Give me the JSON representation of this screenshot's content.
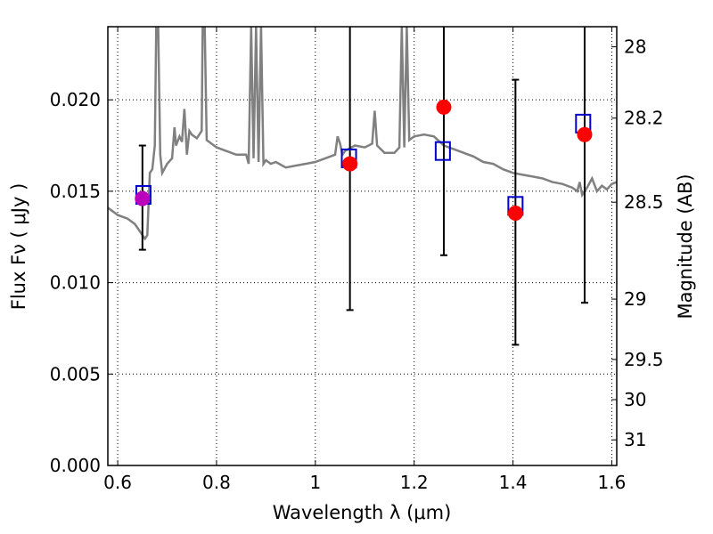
{
  "chart_data": {
    "type": "scatter",
    "xlabel": "Wavelength  λ (μm)",
    "ylabel": "Flux  Fν  ( μJy )",
    "y2label": "Magnitude (AB)",
    "xlim": [
      0.58,
      1.61
    ],
    "ylim": [
      0.0,
      0.024
    ],
    "grid": true,
    "x_ticks": [
      0.6,
      0.8,
      1.0,
      1.2,
      1.4,
      1.6
    ],
    "x_tick_labels": [
      "0.6",
      "0.8",
      "1",
      "1.2",
      "1.4",
      "1.6"
    ],
    "y_ticks": [
      0.0,
      0.005,
      0.01,
      0.015,
      0.02
    ],
    "y_tick_labels": [
      "0.000",
      "0.005",
      "0.010",
      "0.015",
      "0.020"
    ],
    "y2_ticks": [
      {
        "label": "28",
        "flux": 0.0229
      },
      {
        "label": "28.2",
        "flux": 0.019
      },
      {
        "label": "28.5",
        "flux": 0.0144
      },
      {
        "label": "29",
        "flux": 0.0091
      },
      {
        "label": "29.5",
        "flux": 0.0058
      },
      {
        "label": "30",
        "flux": 0.0036
      },
      {
        "label": "31",
        "flux": 0.0014
      }
    ],
    "colors": {
      "model": "#808080",
      "model_photometry": "#0000cc",
      "observed": "#ff0000",
      "observed_overlap": "#bb00bb",
      "errorbar": "#000000"
    },
    "series": [
      {
        "kind": "observed",
        "points": [
          {
            "x": 0.65,
            "y": 0.0146,
            "yerr_low": 0.0118,
            "yerr_high": 0.0175
          },
          {
            "x": 1.07,
            "y": 0.0165,
            "yerr_low": 0.0085,
            "yerr_high": 0.024
          },
          {
            "x": 1.26,
            "y": 0.0196,
            "yerr_low": 0.0115,
            "yerr_high": 0.024
          },
          {
            "x": 1.405,
            "y": 0.0138,
            "yerr_low": 0.0066,
            "yerr_high": 0.0211
          },
          {
            "x": 1.545,
            "y": 0.0181,
            "yerr_low": 0.0089,
            "yerr_high": 0.024
          }
        ]
      },
      {
        "kind": "model_photometry",
        "points": [
          {
            "x": 0.652,
            "y": 0.0148
          },
          {
            "x": 1.068,
            "y": 0.0168
          },
          {
            "x": 1.258,
            "y": 0.0172
          },
          {
            "x": 1.405,
            "y": 0.0142
          },
          {
            "x": 1.542,
            "y": 0.0187
          }
        ]
      },
      {
        "kind": "model_spectrum",
        "points": [
          [
            0.58,
            0.0141
          ],
          [
            0.6,
            0.0137
          ],
          [
            0.62,
            0.0135
          ],
          [
            0.635,
            0.0132
          ],
          [
            0.645,
            0.0128
          ],
          [
            0.655,
            0.0124
          ],
          [
            0.66,
            0.0126
          ],
          [
            0.665,
            0.016
          ],
          [
            0.67,
            0.0162
          ],
          [
            0.675,
            0.0175
          ],
          [
            0.678,
            0.024
          ],
          [
            0.682,
            0.024
          ],
          [
            0.686,
            0.017
          ],
          [
            0.69,
            0.016
          ],
          [
            0.7,
            0.0165
          ],
          [
            0.71,
            0.0168
          ],
          [
            0.715,
            0.0185
          ],
          [
            0.718,
            0.0175
          ],
          [
            0.725,
            0.018
          ],
          [
            0.73,
            0.0177
          ],
          [
            0.735,
            0.0195
          ],
          [
            0.74,
            0.017
          ],
          [
            0.745,
            0.0183
          ],
          [
            0.75,
            0.0181
          ],
          [
            0.76,
            0.0179
          ],
          [
            0.77,
            0.0183
          ],
          [
            0.772,
            0.024
          ],
          [
            0.776,
            0.024
          ],
          [
            0.78,
            0.0178
          ],
          [
            0.79,
            0.0176
          ],
          [
            0.8,
            0.0174
          ],
          [
            0.82,
            0.0172
          ],
          [
            0.84,
            0.017
          ],
          [
            0.86,
            0.017
          ],
          [
            0.865,
            0.0165
          ],
          [
            0.87,
            0.024
          ],
          [
            0.875,
            0.0168
          ],
          [
            0.88,
            0.024
          ],
          [
            0.885,
            0.0166
          ],
          [
            0.89,
            0.024
          ],
          [
            0.895,
            0.0165
          ],
          [
            0.9,
            0.0167
          ],
          [
            0.91,
            0.0165
          ],
          [
            0.92,
            0.0166
          ],
          [
            0.94,
            0.0163
          ],
          [
            0.96,
            0.0164
          ],
          [
            0.98,
            0.0165
          ],
          [
            1.0,
            0.0166
          ],
          [
            1.02,
            0.0168
          ],
          [
            1.04,
            0.017
          ],
          [
            1.045,
            0.018
          ],
          [
            1.05,
            0.0176
          ],
          [
            1.055,
            0.017
          ],
          [
            1.06,
            0.0172
          ],
          [
            1.08,
            0.0175
          ],
          [
            1.1,
            0.0174
          ],
          [
            1.115,
            0.0176
          ],
          [
            1.12,
            0.0194
          ],
          [
            1.125,
            0.0175
          ],
          [
            1.14,
            0.0171
          ],
          [
            1.16,
            0.0171
          ],
          [
            1.17,
            0.0174
          ],
          [
            1.175,
            0.024
          ],
          [
            1.18,
            0.0174
          ],
          [
            1.185,
            0.024
          ],
          [
            1.19,
            0.0178
          ],
          [
            1.2,
            0.018
          ],
          [
            1.22,
            0.0181
          ],
          [
            1.24,
            0.018
          ],
          [
            1.26,
            0.0175
          ],
          [
            1.28,
            0.0173
          ],
          [
            1.3,
            0.0171
          ],
          [
            1.32,
            0.0169
          ],
          [
            1.34,
            0.0166
          ],
          [
            1.36,
            0.0165
          ],
          [
            1.38,
            0.0162
          ],
          [
            1.4,
            0.016
          ],
          [
            1.42,
            0.0159
          ],
          [
            1.44,
            0.0158
          ],
          [
            1.46,
            0.0157
          ],
          [
            1.48,
            0.0155
          ],
          [
            1.5,
            0.0154
          ],
          [
            1.52,
            0.0152
          ],
          [
            1.53,
            0.015
          ],
          [
            1.535,
            0.0155
          ],
          [
            1.54,
            0.0148
          ],
          [
            1.55,
            0.0152
          ],
          [
            1.56,
            0.0157
          ],
          [
            1.57,
            0.015
          ],
          [
            1.58,
            0.0153
          ],
          [
            1.59,
            0.0151
          ],
          [
            1.6,
            0.0154
          ],
          [
            1.61,
            0.0155
          ]
        ]
      }
    ]
  }
}
